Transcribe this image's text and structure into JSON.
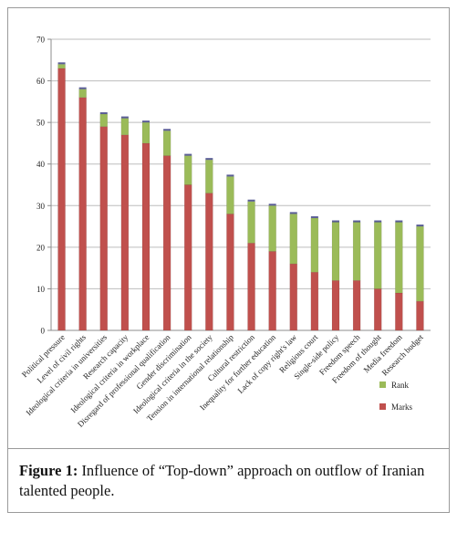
{
  "chart_data": {
    "type": "bar",
    "stacked": true,
    "categories": [
      "Political pressure",
      "Level of civil rights",
      "Ideological criteria in universities",
      "Research capacity",
      "Ideological criteria in workplace",
      "Disregard of professional qualification",
      "Gender discrimination",
      "Ideological criteria in the society",
      "Tension in international relationship",
      "Cultural restriction",
      "Inequality for further education",
      "Lack of copy right's law",
      "Religious court",
      "Single-side policy",
      "Freedom speech",
      "Freedom of thought",
      "Media freedom",
      "Research budget"
    ],
    "series": [
      {
        "name": "Marks",
        "color": "#c0504d",
        "values": [
          63,
          56,
          49,
          47,
          45,
          42,
          35,
          33,
          28,
          21,
          19,
          16,
          14,
          12,
          12,
          10,
          9,
          7
        ]
      },
      {
        "name": "Rank",
        "color": "#9bbb59",
        "values": [
          1,
          2,
          3,
          4,
          5,
          6,
          7,
          8,
          9,
          10,
          11,
          12,
          13,
          14,
          14,
          16,
          17,
          18
        ]
      }
    ],
    "ylim": [
      0,
      70
    ],
    "yticks": [
      0,
      10,
      20,
      30,
      40,
      50,
      60,
      70
    ],
    "grid": true,
    "legend_position": "bottom-right"
  },
  "caption": {
    "label": "Figure 1:",
    "text": " Influence of “Top-down” approach on outflow of Iranian talented people."
  }
}
